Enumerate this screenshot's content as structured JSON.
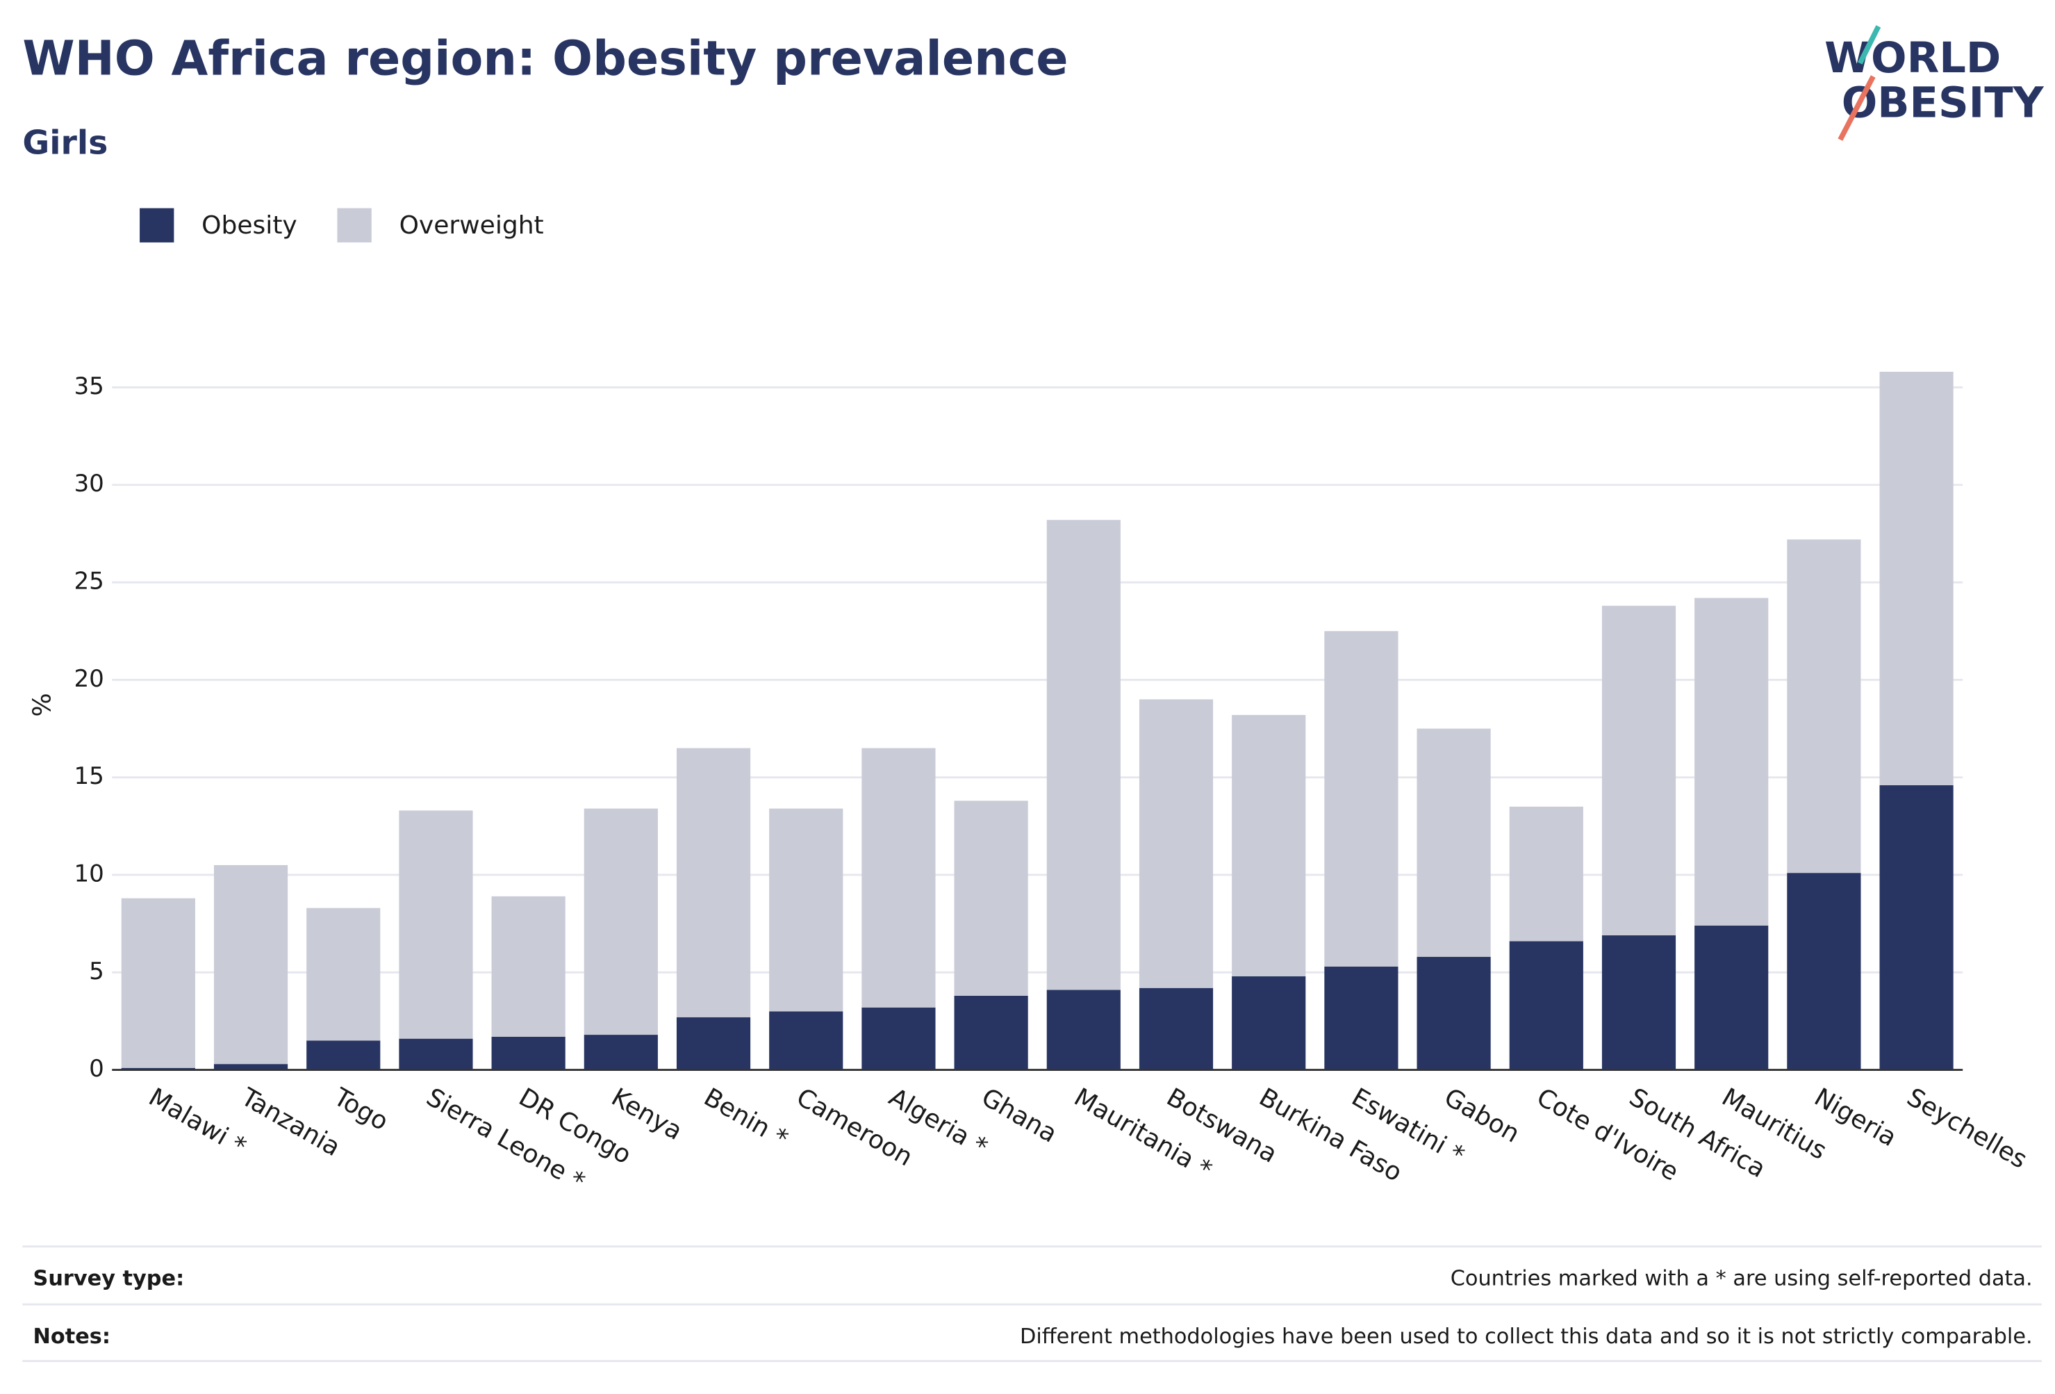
{
  "chart_data": {
    "type": "stacked_bar",
    "title": "WHO Africa region: Obesity prevalence",
    "subtitle": "Girls",
    "ylabel": "%",
    "categories": [
      "Malawi *",
      "Tanzania",
      "Togo",
      "Sierra Leone *",
      "DR Congo",
      "Kenya",
      "Benin *",
      "Cameroon",
      "Algeria *",
      "Ghana",
      "Mauritania *",
      "Botswana",
      "Burkina Faso",
      "Eswatini *",
      "Gabon",
      "Cote d'Ivoire",
      "South Africa",
      "Mauritius",
      "Nigeria",
      "Seychelles"
    ],
    "series": [
      {
        "name": "Obesity",
        "color": "#283562",
        "values": [
          0.1,
          0.3,
          1.5,
          1.6,
          1.7,
          1.8,
          2.7,
          3.0,
          3.2,
          3.8,
          4.1,
          4.2,
          4.8,
          5.3,
          5.8,
          6.6,
          6.9,
          7.4,
          10.1,
          14.6
        ]
      },
      {
        "name": "Overweight",
        "color": "#c9cbd7",
        "values": [
          8.7,
          10.2,
          6.8,
          11.7,
          7.2,
          11.6,
          13.8,
          10.4,
          13.3,
          10.0,
          24.1,
          14.8,
          13.4,
          17.2,
          11.7,
          6.9,
          16.9,
          16.8,
          17.1,
          21.2
        ]
      }
    ],
    "ylim": [
      0,
      36
    ],
    "yticks": [
      0,
      5,
      10,
      15,
      20,
      25,
      30,
      35
    ],
    "grid": true,
    "legend": "top-left"
  },
  "logo": [
    "WORLD",
    "OBESITY"
  ],
  "footer": [
    {
      "label": "Survey type:",
      "text": "Countries marked with a * are using self-reported data."
    },
    {
      "label": "Notes:",
      "text": "Different methodologies have been used to collect this data and so it is not strictly comparable."
    }
  ]
}
